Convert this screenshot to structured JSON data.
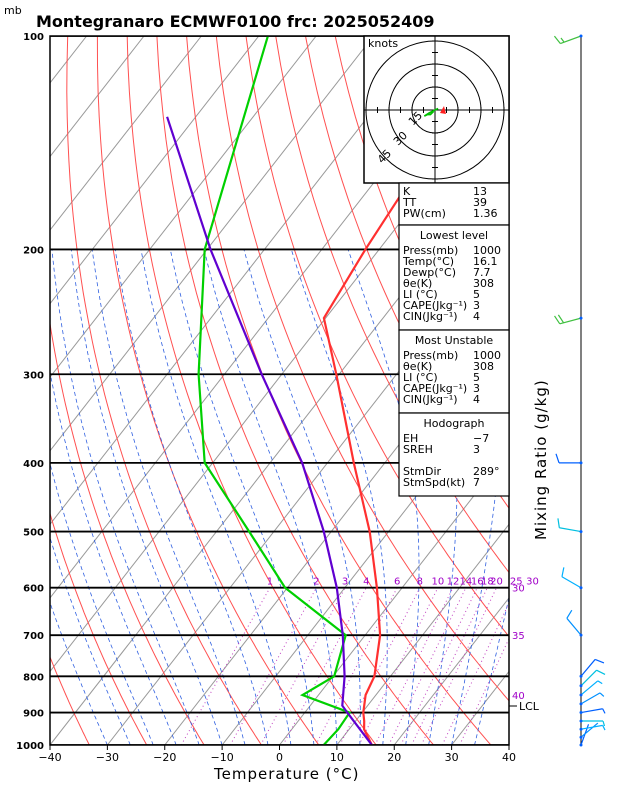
{
  "title": "Montegranaro ECMWF0100 frc: 2025052409",
  "pressure_unit": "mb",
  "x_axis_label": "Temperature (°C)",
  "right_axis_label": "Mixing Ratio (g/kg)",
  "hodograph_unit": "knots",
  "hodograph_ring_labels": [
    "15",
    "30",
    "45"
  ],
  "lcl_label": "LCL",
  "theta_labels": [
    {
      "label": "30",
      "p": 600
    },
    {
      "label": "35",
      "p": 700
    },
    {
      "label": "40",
      "p": 850
    }
  ],
  "indices": {
    "top": [
      {
        "label": "K",
        "value": "13"
      },
      {
        "label": "TT",
        "value": "39"
      },
      {
        "label": "PW(cm)",
        "value": "1.36"
      }
    ],
    "sections": [
      {
        "header": "Lowest level",
        "rows": [
          {
            "label": "Press(mb)",
            "value": "1000"
          },
          {
            "label": "Temp(°C)",
            "value": "16.1"
          },
          {
            "label": "Dewp(°C)",
            "value": "7.7"
          },
          {
            "label": "θe(K)",
            "value": "308"
          },
          {
            "label": "LI (°C)",
            "value": "5"
          },
          {
            "label": "CAPE(Jkg⁻¹)",
            "value": "3"
          },
          {
            "label": "CIN(Jkg⁻¹)",
            "value": "4"
          }
        ]
      },
      {
        "header": "Most Unstable",
        "rows": [
          {
            "label": "Press(mb)",
            "value": "1000"
          },
          {
            "label": "θe(K)",
            "value": "308"
          },
          {
            "label": "LI (°C)",
            "value": "5"
          },
          {
            "label": "CAPE(Jkg⁻¹)",
            "value": "3"
          },
          {
            "label": "CIN(Jkg⁻¹)",
            "value": "4"
          }
        ]
      },
      {
        "header": "Hodograph",
        "rows": [
          {
            "label": "EH",
            "value": "−7"
          },
          {
            "label": "SREH",
            "value": "3"
          },
          {
            "label": "",
            "value": ""
          },
          {
            "label": "StmDir",
            "value": "289°"
          },
          {
            "label": "StmSpd(kt)",
            "value": "7"
          }
        ]
      }
    ]
  },
  "chart_data": {
    "type": "line",
    "title": "Montegranaro ECMWF0100 frc: 2025052409",
    "xlabel": "Temperature (°C)",
    "ylabel": "mb",
    "xlim": [
      -40,
      40
    ],
    "ylim": [
      1000,
      100
    ],
    "x_ticks": [
      -40,
      -30,
      -20,
      -10,
      0,
      10,
      20,
      30,
      40
    ],
    "pressure_levels": [
      100,
      200,
      300,
      400,
      500,
      600,
      700,
      800,
      900,
      1000
    ],
    "mixing_ratio_lines": [
      1,
      2,
      3,
      4,
      6,
      8,
      10,
      12,
      14,
      16,
      18,
      20,
      25,
      30
    ],
    "series": [
      {
        "name": "Temperature",
        "color": "#ff3030",
        "points": [
          {
            "p": 1000,
            "t": 16.1
          },
          {
            "p": 950,
            "t": 12.6
          },
          {
            "p": 925,
            "t": 11.5
          },
          {
            "p": 900,
            "t": 10.2
          },
          {
            "p": 850,
            "t": 8.2
          },
          {
            "p": 800,
            "t": 7.2
          },
          {
            "p": 700,
            "t": 2.6
          },
          {
            "p": 600,
            "t": -4.4
          },
          {
            "p": 500,
            "t": -13.3
          },
          {
            "p": 400,
            "t": -25.4
          },
          {
            "p": 300,
            "t": -40.5
          },
          {
            "p": 250,
            "t": -50.3
          },
          {
            "p": 200,
            "t": -52.4
          },
          {
            "p": 150,
            "t": -54.4
          },
          {
            "p": 100,
            "t": -57.4
          }
        ]
      },
      {
        "name": "Dewpoint",
        "color": "#00d000",
        "points": [
          {
            "p": 1000,
            "t": 7.7
          },
          {
            "p": 950,
            "t": 8.1
          },
          {
            "p": 900,
            "t": 7.8
          },
          {
            "p": 850,
            "t": -2.8
          },
          {
            "p": 800,
            "t": 0.2
          },
          {
            "p": 700,
            "t": -3.4
          },
          {
            "p": 600,
            "t": -20.4
          },
          {
            "p": 500,
            "t": -34.3
          },
          {
            "p": 400,
            "t": -51.4
          },
          {
            "p": 300,
            "t": -64.5
          },
          {
            "p": 200,
            "t": -80.4
          },
          {
            "p": 100,
            "t": -98.4
          }
        ]
      },
      {
        "name": "Parcel",
        "color": "#6000d0",
        "points": [
          {
            "p": 1000,
            "t": 16.1
          },
          {
            "p": 900,
            "t": 7.4
          },
          {
            "p": 880,
            "t": 5.6
          },
          {
            "p": 800,
            "t": 2.0
          },
          {
            "p": 700,
            "t": -3.9
          },
          {
            "p": 600,
            "t": -11.4
          },
          {
            "p": 500,
            "t": -21.3
          },
          {
            "p": 400,
            "t": -34.4
          },
          {
            "p": 300,
            "t": -53.5
          },
          {
            "p": 200,
            "t": -79.4
          },
          {
            "p": 130,
            "t": -105.0
          }
        ]
      }
    ],
    "wind_barbs": [
      {
        "p": 1000,
        "dir": 20,
        "kt": 3
      },
      {
        "p": 975,
        "dir": 50,
        "kt": 4
      },
      {
        "p": 950,
        "dir": 80,
        "kt": 6
      },
      {
        "p": 925,
        "dir": 90,
        "kt": 8
      },
      {
        "p": 900,
        "dir": 80,
        "kt": 7
      },
      {
        "p": 875,
        "dir": 60,
        "kt": 8
      },
      {
        "p": 850,
        "dir": 50,
        "kt": 9
      },
      {
        "p": 825,
        "dir": 45,
        "kt": 10
      },
      {
        "p": 800,
        "dir": 40,
        "kt": 12
      },
      {
        "p": 700,
        "dir": 320,
        "kt": 10
      },
      {
        "p": 600,
        "dir": 300,
        "kt": 12
      },
      {
        "p": 500,
        "dir": 280,
        "kt": 10
      },
      {
        "p": 400,
        "dir": 270,
        "kt": 14
      },
      {
        "p": 250,
        "dir": 255,
        "kt": 20
      },
      {
        "p": 100,
        "dir": 250,
        "kt": 18
      }
    ],
    "hodograph": {
      "unit": "knots",
      "rings_kt": [
        15,
        30,
        45
      ],
      "trace_uv": [
        [
          -1,
          -1
        ],
        [
          -3,
          -3
        ],
        [
          -5,
          -3
        ],
        [
          -7,
          -4
        ],
        [
          -4,
          -2
        ],
        [
          0,
          0
        ],
        [
          2,
          1
        ]
      ]
    }
  }
}
